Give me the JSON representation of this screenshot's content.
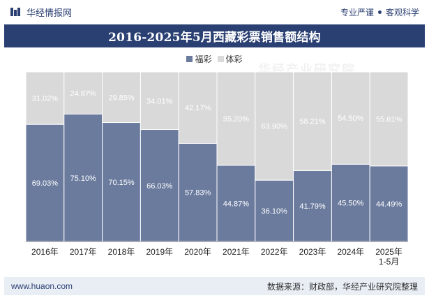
{
  "header": {
    "brand": "华经情报网",
    "slogan_left": "专业严谨",
    "slogan_right": "客观科学"
  },
  "watermark": "华经产业研究院",
  "footer": {
    "site": "www.huaon.com",
    "source": "数据来源：财政部，华经产业研究院整理"
  },
  "colors": {
    "brand": "#2a3f72",
    "fucai": "#6b7b9e",
    "ticai": "#d9d9d9"
  },
  "chart_data": {
    "type": "bar",
    "stacked": true,
    "title": "2016-2025年5月西藏彩票销售额结构",
    "categories": [
      "2016年",
      "2017年",
      "2018年",
      "2019年",
      "2020年",
      "2021年",
      "2022年",
      "2023年",
      "2024年",
      "2025年\n1-5月"
    ],
    "series": [
      {
        "name": "福彩",
        "color": "#6b7b9e",
        "values": [
          69.03,
          75.1,
          70.15,
          66.03,
          57.83,
          44.87,
          36.1,
          41.79,
          45.5,
          44.49
        ]
      },
      {
        "name": "体彩",
        "color": "#d9d9d9",
        "values": [
          31.02,
          24.87,
          29.85,
          34.01,
          42.17,
          55.2,
          63.9,
          58.21,
          54.5,
          55.61
        ]
      }
    ],
    "value_suffix": "%",
    "ylim": [
      0,
      100
    ],
    "legend_position": "top-center",
    "grid": false
  }
}
